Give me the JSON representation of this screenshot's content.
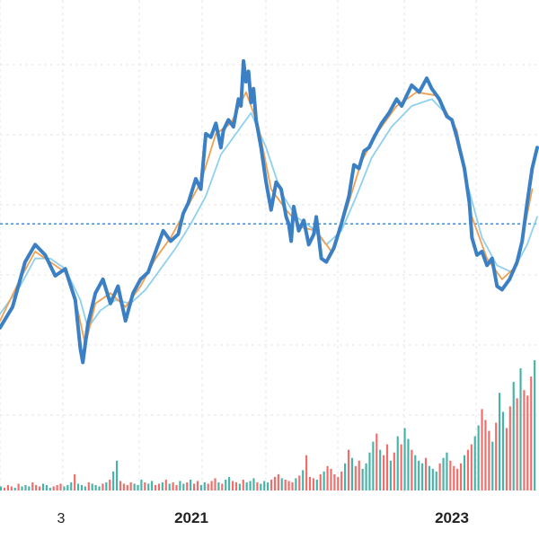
{
  "chart_data": {
    "type": "line",
    "x_tick_labels": [
      "3",
      "2021",
      "2023"
    ],
    "price_axis": {
      "range": [
        0,
        100
      ],
      "reference_line": 58
    },
    "volume_axis": {
      "range": [
        0,
        100
      ]
    },
    "grid": true,
    "series": [
      {
        "role": "price",
        "color": "#3b7fc4",
        "points": [
          [
            0,
            28
          ],
          [
            5,
            34
          ],
          [
            10,
            47
          ],
          [
            14,
            52
          ],
          [
            18,
            49
          ],
          [
            22,
            43
          ],
          [
            26,
            45
          ],
          [
            30,
            36
          ],
          [
            32,
            22
          ],
          [
            33,
            18
          ],
          [
            35,
            29
          ],
          [
            38,
            38
          ],
          [
            41,
            42
          ],
          [
            44,
            35
          ],
          [
            47,
            40
          ],
          [
            50,
            30
          ],
          [
            53,
            38
          ],
          [
            56,
            42
          ],
          [
            59,
            44
          ],
          [
            62,
            50
          ],
          [
            65,
            56
          ],
          [
            68,
            53
          ],
          [
            71,
            55
          ],
          [
            73,
            61
          ],
          [
            75,
            64
          ],
          [
            78,
            71
          ],
          [
            80,
            68
          ],
          [
            82,
            84
          ],
          [
            84,
            83
          ],
          [
            86,
            87
          ],
          [
            88,
            80
          ],
          [
            89,
            85
          ],
          [
            91,
            88
          ],
          [
            93,
            86
          ],
          [
            95,
            94
          ],
          [
            96,
            92
          ],
          [
            97,
            105
          ],
          [
            98,
            99
          ],
          [
            99,
            102
          ],
          [
            100,
            93
          ],
          [
            101,
            97
          ],
          [
            102,
            88
          ],
          [
            103,
            84
          ],
          [
            104,
            80
          ],
          [
            106,
            70
          ],
          [
            108,
            62
          ],
          [
            110,
            70
          ],
          [
            112,
            68
          ],
          [
            114,
            60
          ],
          [
            115,
            58
          ],
          [
            116,
            53
          ],
          [
            117,
            63
          ],
          [
            119,
            56
          ],
          [
            121,
            59
          ],
          [
            123,
            52
          ],
          [
            125,
            55
          ],
          [
            126,
            60
          ],
          [
            128,
            48
          ],
          [
            130,
            47
          ],
          [
            133,
            51
          ],
          [
            136,
            58
          ],
          [
            139,
            66
          ],
          [
            141,
            75
          ],
          [
            143,
            74
          ],
          [
            145,
            79
          ],
          [
            147,
            80
          ],
          [
            149,
            83
          ],
          [
            152,
            87
          ],
          [
            155,
            90
          ],
          [
            158,
            94
          ],
          [
            160,
            92
          ],
          [
            162,
            95
          ],
          [
            164,
            98
          ],
          [
            167,
            96
          ],
          [
            170,
            100
          ],
          [
            172,
            97
          ],
          [
            175,
            94
          ],
          [
            178,
            89
          ],
          [
            180,
            88
          ],
          [
            182,
            83
          ],
          [
            185,
            74
          ],
          [
            187,
            64
          ],
          [
            188,
            54
          ],
          [
            190,
            49
          ],
          [
            192,
            50
          ],
          [
            194,
            46
          ],
          [
            196,
            48
          ],
          [
            198,
            40
          ],
          [
            200,
            39
          ],
          [
            203,
            42
          ],
          [
            206,
            47
          ],
          [
            208,
            53
          ],
          [
            210,
            64
          ],
          [
            212,
            74
          ],
          [
            214,
            80
          ]
        ]
      },
      {
        "role": "moving-average-short",
        "color": "#f0a050",
        "points": [
          [
            0,
            30
          ],
          [
            8,
            42
          ],
          [
            14,
            50
          ],
          [
            20,
            47
          ],
          [
            26,
            44
          ],
          [
            31,
            33
          ],
          [
            34,
            23
          ],
          [
            38,
            35
          ],
          [
            44,
            38
          ],
          [
            50,
            34
          ],
          [
            56,
            40
          ],
          [
            62,
            48
          ],
          [
            68,
            54
          ],
          [
            74,
            62
          ],
          [
            80,
            70
          ],
          [
            86,
            84
          ],
          [
            92,
            87
          ],
          [
            98,
            96
          ],
          [
            103,
            86
          ],
          [
            108,
            68
          ],
          [
            114,
            62
          ],
          [
            120,
            57
          ],
          [
            126,
            56
          ],
          [
            132,
            50
          ],
          [
            138,
            62
          ],
          [
            144,
            76
          ],
          [
            150,
            84
          ],
          [
            158,
            92
          ],
          [
            166,
            96
          ],
          [
            174,
            95
          ],
          [
            182,
            85
          ],
          [
            188,
            60
          ],
          [
            194,
            48
          ],
          [
            200,
            42
          ],
          [
            206,
            46
          ],
          [
            212,
            68
          ]
        ]
      },
      {
        "role": "moving-average-long",
        "color": "#8fd0ee",
        "points": [
          [
            0,
            32
          ],
          [
            8,
            40
          ],
          [
            14,
            48
          ],
          [
            20,
            48
          ],
          [
            26,
            45
          ],
          [
            32,
            36
          ],
          [
            35,
            28
          ],
          [
            40,
            33
          ],
          [
            46,
            36
          ],
          [
            52,
            35
          ],
          [
            58,
            39
          ],
          [
            64,
            45
          ],
          [
            70,
            51
          ],
          [
            76,
            58
          ],
          [
            82,
            66
          ],
          [
            88,
            78
          ],
          [
            94,
            84
          ],
          [
            100,
            90
          ],
          [
            106,
            80
          ],
          [
            112,
            67
          ],
          [
            118,
            60
          ],
          [
            124,
            57
          ],
          [
            130,
            52
          ],
          [
            136,
            56
          ],
          [
            142,
            66
          ],
          [
            148,
            77
          ],
          [
            156,
            86
          ],
          [
            164,
            92
          ],
          [
            172,
            94
          ],
          [
            180,
            88
          ],
          [
            186,
            70
          ],
          [
            192,
            54
          ],
          [
            198,
            46
          ],
          [
            204,
            44
          ],
          [
            210,
            52
          ],
          [
            214,
            60
          ]
        ]
      }
    ],
    "volume_series": {
      "colors": {
        "up": "#26a69a",
        "down": "#ef5350"
      },
      "values": [
        3,
        2,
        4,
        3,
        2,
        5,
        3,
        4,
        3,
        6,
        4,
        3,
        5,
        4,
        2,
        3,
        4,
        5,
        3,
        4,
        6,
        12,
        5,
        4,
        3,
        6,
        5,
        4,
        3,
        5,
        6,
        8,
        14,
        22,
        7,
        5,
        4,
        6,
        5,
        4,
        8,
        6,
        5,
        7,
        4,
        5,
        6,
        8,
        5,
        6,
        4,
        7,
        5,
        6,
        8,
        5,
        7,
        4,
        6,
        5,
        7,
        9,
        6,
        5,
        8,
        10,
        7,
        6,
        5,
        8,
        6,
        7,
        9,
        6,
        5,
        7,
        6,
        8,
        10,
        12,
        9,
        8,
        7,
        6,
        9,
        11,
        15,
        26,
        10,
        9,
        8,
        12,
        14,
        18,
        16,
        12,
        10,
        14,
        20,
        30,
        24,
        18,
        22,
        16,
        20,
        28,
        36,
        42,
        30,
        26,
        34,
        22,
        28,
        40,
        34,
        46,
        38,
        30,
        26,
        22,
        20,
        24,
        18,
        16,
        14,
        20,
        24,
        28,
        22,
        18,
        16,
        20,
        26,
        30,
        34,
        40,
        48,
        60,
        52,
        44,
        36,
        50,
        72,
        58,
        46,
        62,
        80,
        68,
        90,
        74,
        70,
        84,
        96
      ]
    }
  }
}
